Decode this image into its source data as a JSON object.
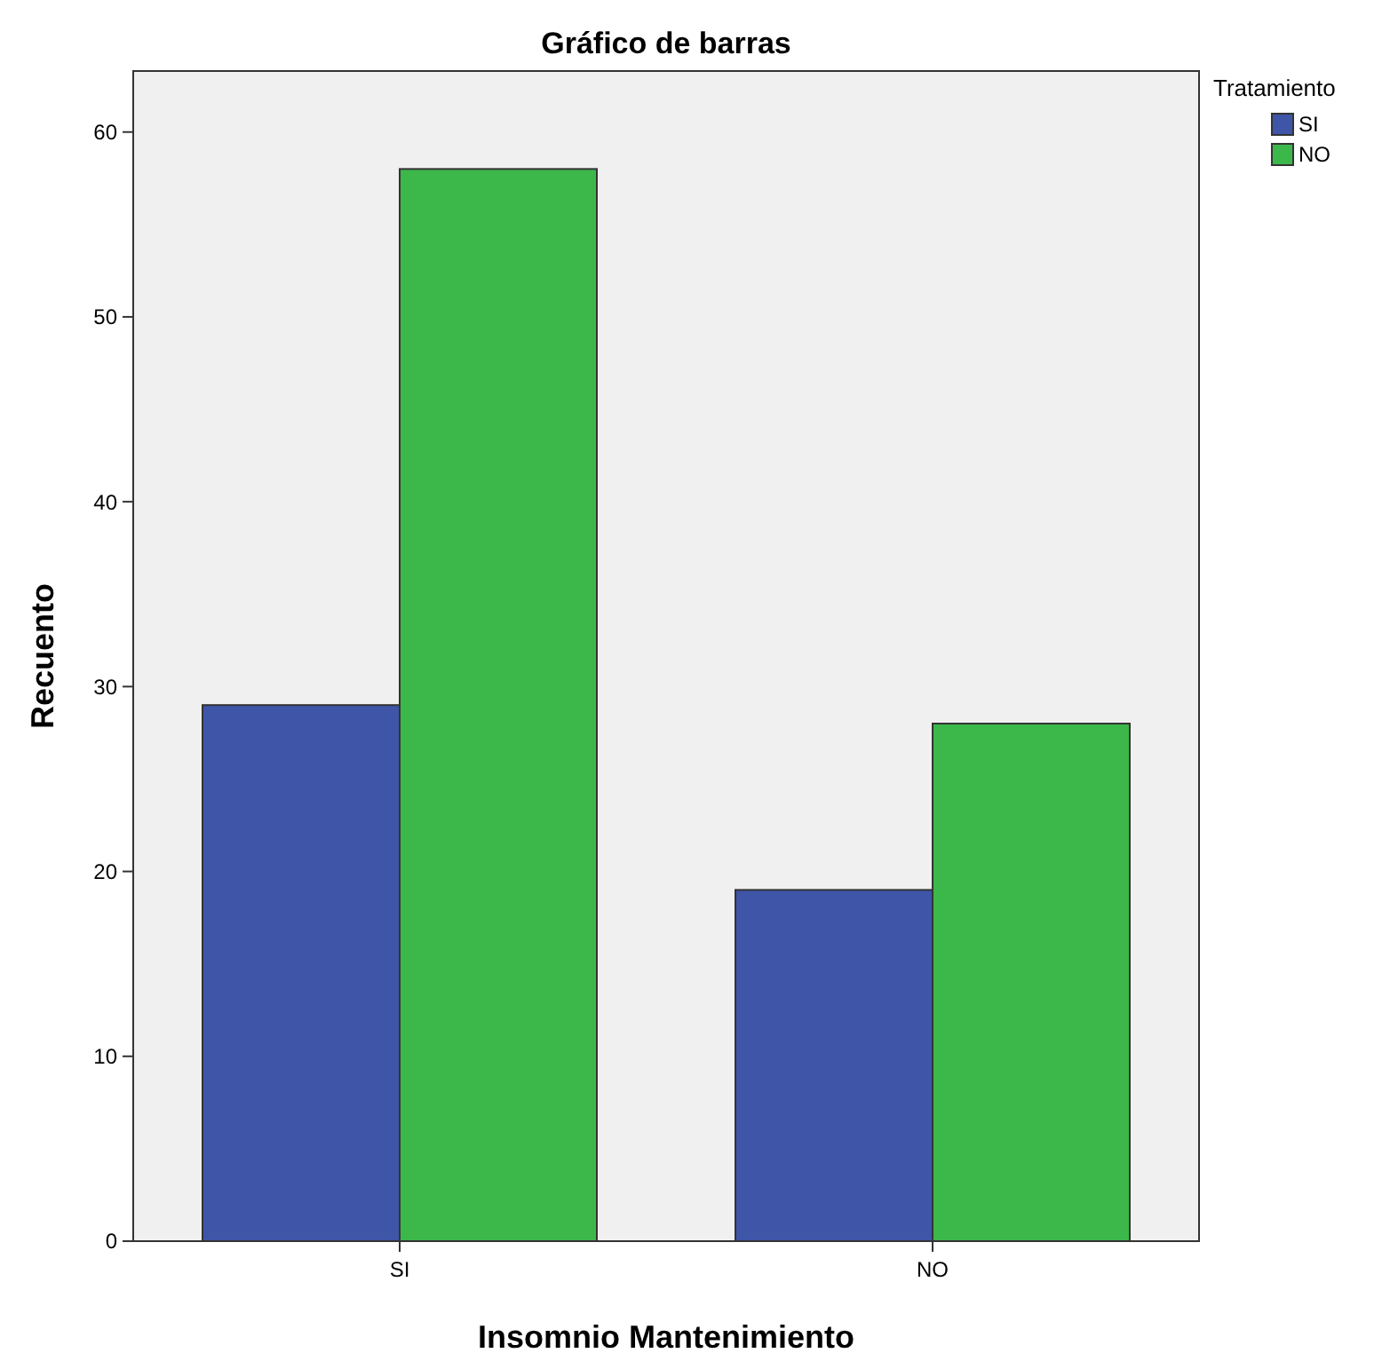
{
  "chart_data": {
    "type": "bar",
    "title": "Gráfico de barras",
    "xlabel": "Insomnio Mantenimiento",
    "ylabel": "Recuento",
    "legend_title": "Tratamiento",
    "categories": [
      "SI",
      "NO"
    ],
    "series": [
      {
        "name": "SI",
        "color": "#3e55a8",
        "values": [
          29,
          19
        ]
      },
      {
        "name": "NO",
        "color": "#3cb74a",
        "values": [
          58,
          28
        ]
      }
    ],
    "ylim": [
      0,
      63.3
    ],
    "yticks": [
      0,
      10,
      20,
      30,
      40,
      50,
      60
    ],
    "grid": false,
    "legend": "top right"
  }
}
